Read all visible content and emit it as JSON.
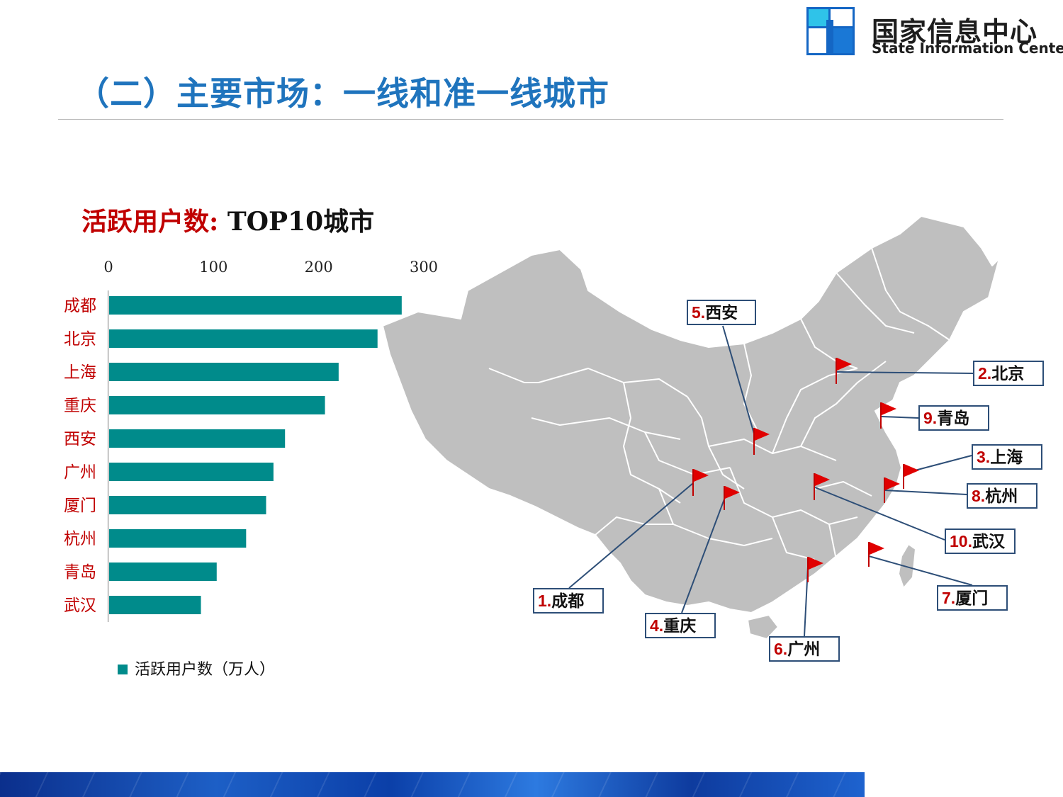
{
  "header": {
    "logo_cn": "国家信息中心",
    "logo_en": "State Information Center",
    "title": "（二）主要市场：一线和准一线城市"
  },
  "colors": {
    "title_blue": "#1f74bd",
    "bar_teal": "#008b8b",
    "label_red": "#c00000",
    "map_gray": "#bfbfbf",
    "flag_red": "#e00000",
    "callout_border": "#2d4e77"
  },
  "chart_data": {
    "type": "bar",
    "orientation": "horizontal",
    "title": "活跃用户数: TOP10城市",
    "title_cn": "活跃用户数:",
    "title_en": "TOP10城市",
    "categories": [
      "成都",
      "北京",
      "上海",
      "重庆",
      "西安",
      "广州",
      "厦门",
      "杭州",
      "青岛",
      "武汉"
    ],
    "series": [
      {
        "name": "活跃用户数（万人）",
        "values": [
          279,
          256,
          219,
          206,
          168,
          157,
          150,
          131,
          103,
          88
        ]
      }
    ],
    "xlim": [
      0,
      300
    ],
    "x_ticks": [
      "0",
      "100",
      "200",
      "300"
    ],
    "x_axis_position": "top",
    "grid": false,
    "legend_position": "bottom-left"
  },
  "map": {
    "callouts": [
      {
        "num": "1.",
        "city": "成都",
        "icon": "flag-icon"
      },
      {
        "num": "2.",
        "city": "北京",
        "icon": "flag-icon"
      },
      {
        "num": "3.",
        "city": "上海",
        "icon": "flag-icon"
      },
      {
        "num": "4.",
        "city": "重庆",
        "icon": "flag-icon"
      },
      {
        "num": "5.",
        "city": "西安",
        "icon": "flag-icon"
      },
      {
        "num": "6.",
        "city": "广州",
        "icon": "flag-icon"
      },
      {
        "num": "7.",
        "city": "厦门",
        "icon": "flag-icon"
      },
      {
        "num": "8.",
        "city": "杭州",
        "icon": "flag-icon"
      },
      {
        "num": "9.",
        "city": "青岛",
        "icon": "flag-icon"
      },
      {
        "num": "10.",
        "city": "武汉",
        "icon": "flag-icon"
      }
    ]
  }
}
